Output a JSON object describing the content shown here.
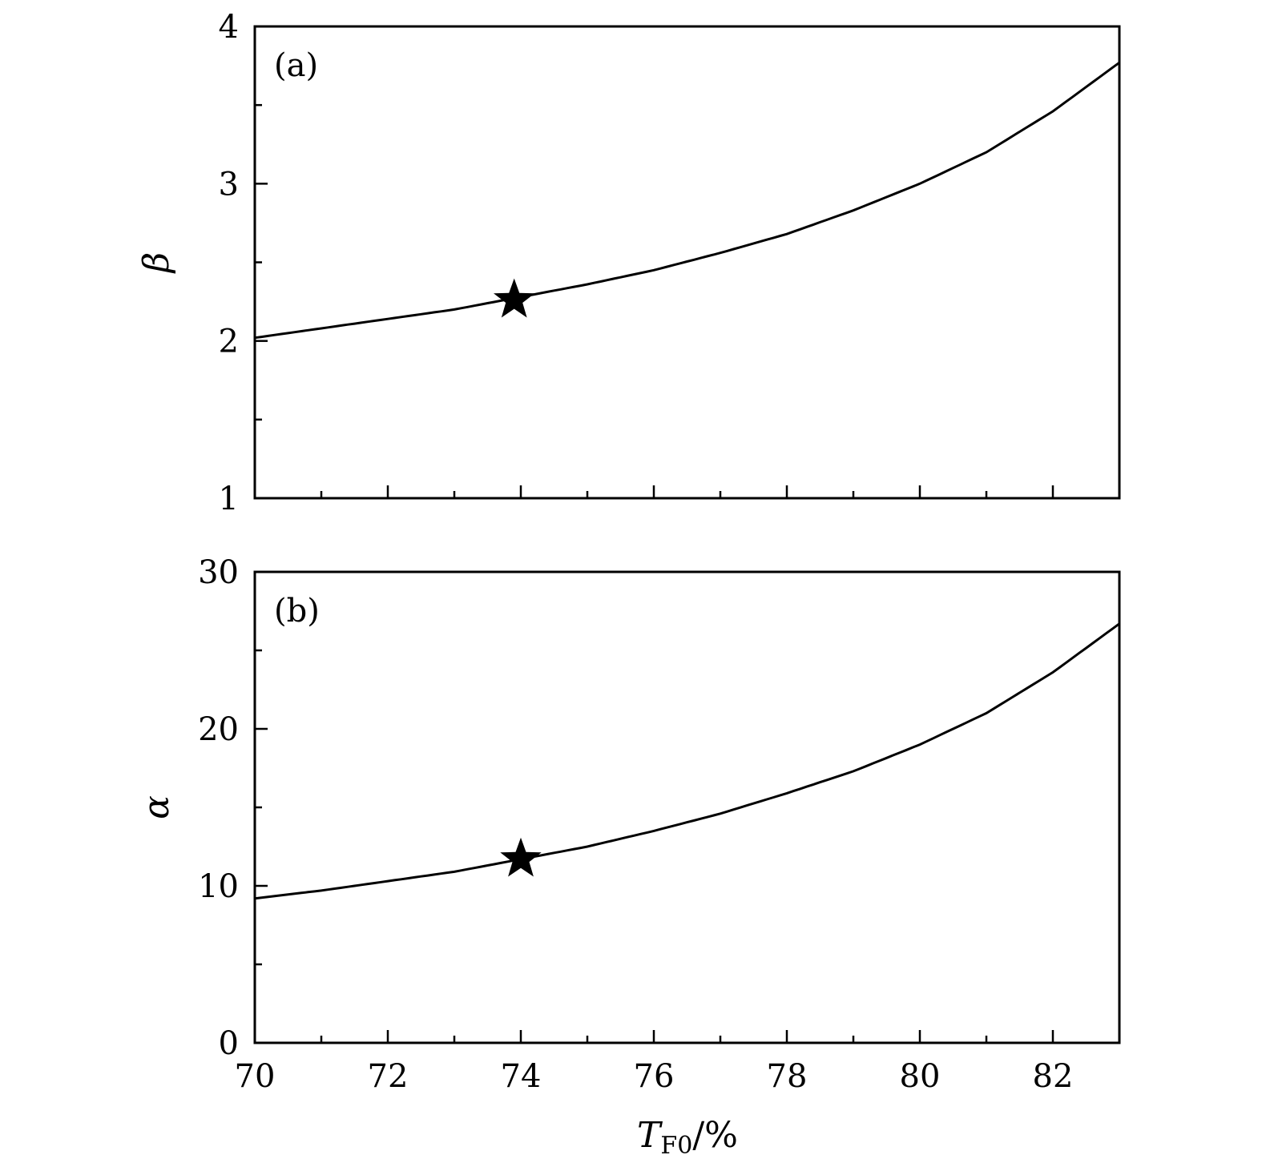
{
  "chart_data": [
    {
      "type": "line",
      "panel_label": "(a)",
      "xlabel": "",
      "ylabel": "β",
      "xlim": [
        70,
        83
      ],
      "ylim": [
        1,
        4
      ],
      "x_ticks": [
        70,
        72,
        74,
        76,
        78,
        80,
        82
      ],
      "x_tick_labels_shown": false,
      "x_minor_step": 1,
      "y_ticks": [
        1,
        2,
        3,
        4
      ],
      "y_minor_step": 0.5,
      "series": [
        {
          "x": [
            70,
            71,
            72,
            73,
            74,
            75,
            76,
            77,
            78,
            79,
            80,
            81,
            82,
            83
          ],
          "y": [
            2.02,
            2.08,
            2.14,
            2.2,
            2.28,
            2.36,
            2.45,
            2.56,
            2.68,
            2.83,
            3.0,
            3.2,
            3.46,
            3.77
          ]
        }
      ],
      "marker": {
        "shape": "star",
        "x": 73.9,
        "y": 2.26
      },
      "grid": false
    },
    {
      "type": "line",
      "panel_label": "(b)",
      "xlabel": "",
      "ylabel": "α",
      "xlim": [
        70,
        83
      ],
      "ylim": [
        0,
        30
      ],
      "x_ticks": [
        70,
        72,
        74,
        76,
        78,
        80,
        82
      ],
      "x_tick_labels_shown": true,
      "x_minor_step": 1,
      "y_ticks": [
        0,
        10,
        20,
        30
      ],
      "y_minor_step": 5,
      "series": [
        {
          "x": [
            70,
            71,
            72,
            73,
            74,
            75,
            76,
            77,
            78,
            79,
            80,
            81,
            82,
            83
          ],
          "y": [
            9.2,
            9.7,
            10.3,
            10.9,
            11.7,
            12.5,
            13.5,
            14.6,
            15.9,
            17.3,
            19.0,
            21.0,
            23.6,
            26.7
          ]
        }
      ],
      "marker": {
        "shape": "star",
        "x": 74.0,
        "y": 11.7
      },
      "grid": false
    }
  ],
  "x_axis_title": {
    "main": "T",
    "subscript": "F0",
    "suffix": "/%"
  }
}
